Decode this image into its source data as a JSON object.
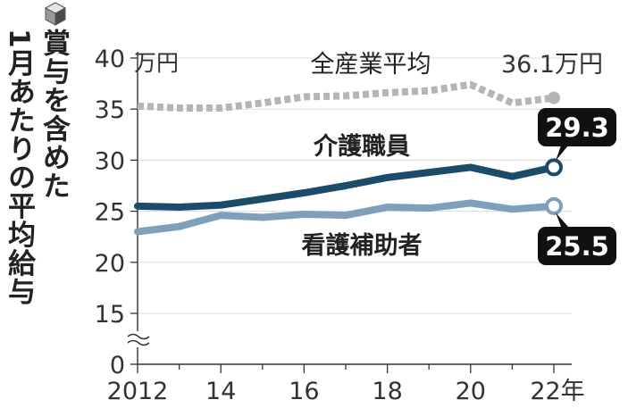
{
  "chart_data": {
    "type": "line",
    "title_lines": [
      "賞与を含めた",
      "1月あたりの平均給与"
    ],
    "y_unit": "万円",
    "x_unit": "年",
    "y_ticks": [
      "40",
      "35",
      "30",
      "25",
      "20",
      "15",
      "0"
    ],
    "x_tick_labels": [
      "2012",
      "14",
      "16",
      "18",
      "20",
      "22年"
    ],
    "x_tick_years": [
      2012,
      2014,
      2016,
      2018,
      2020,
      2022
    ],
    "x": [
      2012,
      2013,
      2014,
      2015,
      2016,
      2017,
      2018,
      2019,
      2020,
      2021,
      2022
    ],
    "ylim": [
      0,
      40
    ],
    "axis_break": true,
    "series": [
      {
        "name": "全産業平均",
        "end_label": "36.1万円",
        "color": "#b5b5b5",
        "style": "dotted",
        "values": [
          35.3,
          35.1,
          35.1,
          35.6,
          36.2,
          36.3,
          36.6,
          36.8,
          37.4,
          35.6,
          36.1
        ]
      },
      {
        "name": "介護職員",
        "end_label": "29.3",
        "color": "#1b4d6b",
        "style": "solid",
        "values": [
          25.5,
          25.4,
          25.6,
          26.2,
          26.8,
          27.5,
          28.3,
          28.8,
          29.3,
          28.4,
          29.3
        ]
      },
      {
        "name": "看護補助者",
        "end_label": "25.5",
        "color": "#7f9fbd",
        "style": "solid",
        "values": [
          23.0,
          23.5,
          24.6,
          24.4,
          24.7,
          24.6,
          25.4,
          25.3,
          25.8,
          25.2,
          25.5
        ]
      }
    ]
  }
}
